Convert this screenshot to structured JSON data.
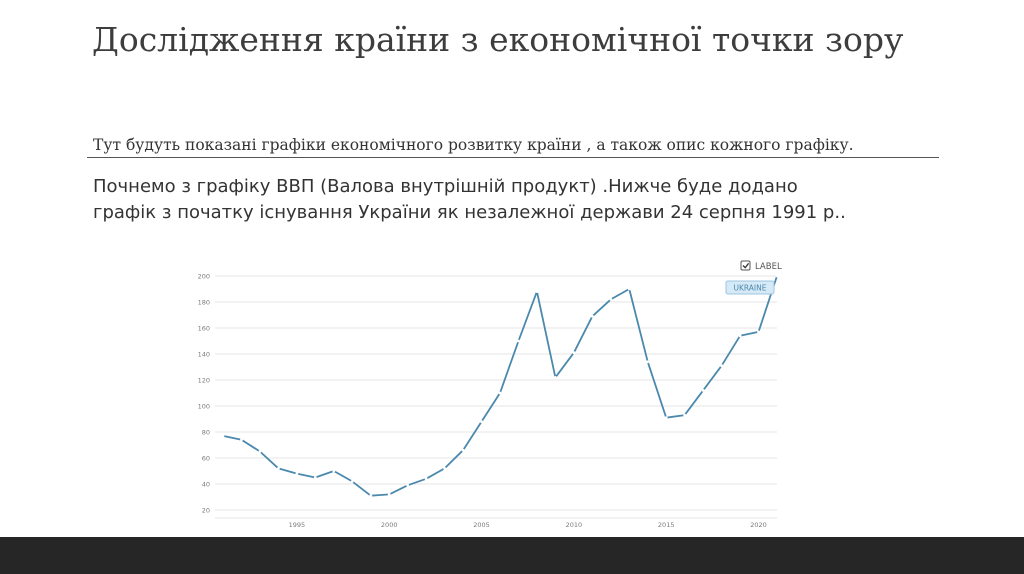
{
  "slide": {
    "title": "Дослідження країни з економічної точки зору",
    "subtitle": "Тут будуть показані графіки економічного розвитку країни , а також опис кожного графіку.",
    "body_line1": "Почнемо з графіку ВВП (Валова внутрішній продукт) .Нижче буде додано",
    "body_line2": "графік з початку існування України як незалежної держави 24 серпня 1991 р.."
  },
  "chart_legend": {
    "checkbox_label": "LABEL",
    "series_tag": "UKRAINE"
  },
  "colors": {
    "line": "#4a89ad",
    "grid": "#e6e6e6",
    "tick_text": "#7a7a7a",
    "tag_bg": "#d6e9f6",
    "tag_border": "#9cc5e2",
    "tag_text": "#4a89ad",
    "bottom_bar": "#262626"
  },
  "chart_data": {
    "type": "line",
    "title": "",
    "xlabel": "",
    "ylabel": "",
    "xlim": [
      1991,
      2021
    ],
    "ylim": [
      20,
      200
    ],
    "yticks": [
      20,
      40,
      60,
      80,
      100,
      120,
      140,
      160,
      180,
      200
    ],
    "xticks": [
      1995,
      2000,
      2005,
      2010,
      2015,
      2020
    ],
    "grid": "horizontal",
    "legend": "top-right",
    "series": [
      {
        "name": "UKRAINE",
        "x": [
          1991,
          1992,
          1993,
          1994,
          1995,
          1996,
          1997,
          1998,
          1999,
          2000,
          2001,
          2002,
          2003,
          2004,
          2005,
          2006,
          2007,
          2008,
          2009,
          2010,
          2011,
          2012,
          2013,
          2014,
          2015,
          2016,
          2017,
          2018,
          2019,
          2020,
          2021
        ],
        "values": [
          77,
          74,
          65,
          52,
          48,
          45,
          50,
          42,
          31,
          32,
          39,
          44,
          52,
          66,
          88,
          110,
          150,
          188,
          122,
          141,
          169,
          182,
          190,
          134,
          91,
          93,
          112,
          131,
          154,
          157,
          200
        ]
      }
    ]
  }
}
